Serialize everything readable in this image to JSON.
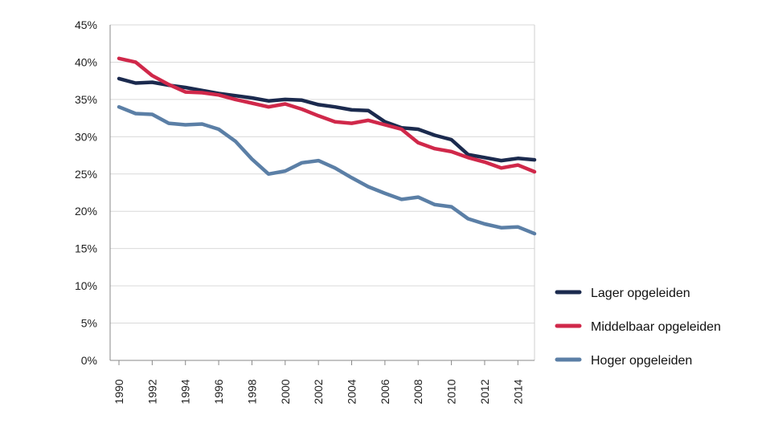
{
  "chart_data": {
    "type": "line",
    "title": "",
    "xlabel": "",
    "ylabel": "",
    "ylim": [
      0,
      45
    ],
    "y_ticks": [
      "0%",
      "5%",
      "10%",
      "15%",
      "20%",
      "25%",
      "30%",
      "35%",
      "40%",
      "45%"
    ],
    "x": [
      1990,
      1991,
      1992,
      1993,
      1994,
      1995,
      1996,
      1997,
      1998,
      1999,
      2000,
      2001,
      2002,
      2003,
      2004,
      2005,
      2006,
      2007,
      2008,
      2009,
      2010,
      2011,
      2012,
      2013,
      2014,
      2015
    ],
    "x_tick_labels": [
      "1990",
      "1992",
      "1994",
      "1996",
      "1998",
      "2000",
      "2002",
      "2004",
      "2006",
      "2008",
      "2010",
      "2012",
      "2014"
    ],
    "grid": true,
    "legend_position": "bottom-right",
    "series": [
      {
        "name": "Lager opgeleiden",
        "color": "#1b2a4e",
        "values": [
          37.8,
          37.2,
          37.3,
          36.9,
          36.6,
          36.2,
          35.8,
          35.5,
          35.2,
          34.8,
          35.0,
          34.9,
          34.3,
          34.0,
          33.6,
          33.5,
          32.0,
          31.2,
          31.0,
          30.2,
          29.6,
          27.6,
          27.2,
          26.8,
          27.1,
          26.9
        ]
      },
      {
        "name": "Middelbaar opgeleiden",
        "color": "#d0284a",
        "values": [
          40.5,
          40.0,
          38.2,
          37.0,
          36.0,
          35.9,
          35.6,
          35.0,
          34.5,
          34.0,
          34.4,
          33.7,
          32.8,
          32.0,
          31.8,
          32.2,
          31.6,
          31.0,
          29.2,
          28.4,
          28.0,
          27.2,
          26.6,
          25.8,
          26.2,
          25.3
        ]
      },
      {
        "name": "Hoger opgeleiden",
        "color": "#5b7fa6",
        "values": [
          34.0,
          33.1,
          33.0,
          31.8,
          31.6,
          31.7,
          31.0,
          29.4,
          27.0,
          25.0,
          25.4,
          26.5,
          26.8,
          25.8,
          24.5,
          23.3,
          22.4,
          21.6,
          21.9,
          20.9,
          20.6,
          19.0,
          18.3,
          17.8,
          17.9,
          17.0
        ]
      }
    ]
  }
}
